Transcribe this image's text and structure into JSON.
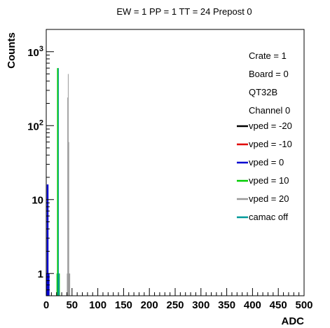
{
  "chart_data": {
    "type": "line",
    "title": "EW = 1 PP = 1 TT = 24 Prepost 0",
    "xlabel": "ADC",
    "ylabel": "Counts",
    "xlim": [
      0,
      500
    ],
    "ylim": [
      0.5,
      2000
    ],
    "yscale": "log",
    "x_ticks": [
      "0",
      "50",
      "100",
      "150",
      "200",
      "250",
      "300",
      "350",
      "400",
      "450",
      "500"
    ],
    "y_ticks": [
      {
        "value": 1,
        "base": "1",
        "exp": ""
      },
      {
        "value": 10,
        "base": "10",
        "exp": ""
      },
      {
        "value": 100,
        "base": "10",
        "exp": "2"
      },
      {
        "value": 1000,
        "base": "10",
        "exp": "3"
      }
    ],
    "info_lines": [
      "Crate = 1",
      "Board = 0",
      "QT32B",
      "Channel 0"
    ],
    "legend_position": "right",
    "series": [
      {
        "name": "vped = -20",
        "color": "#000000",
        "points": []
      },
      {
        "name": "vped = -10",
        "color": "#e00000",
        "points": []
      },
      {
        "name": "vped = 0",
        "color": "#0000d0",
        "points": [
          [
            0,
            1
          ],
          [
            1,
            16
          ],
          [
            2,
            16
          ],
          [
            3,
            16
          ],
          [
            4,
            1
          ],
          [
            5,
            1
          ]
        ]
      },
      {
        "name": "vped = 10",
        "color": "#00cc00",
        "points": [
          [
            20,
            1
          ],
          [
            21,
            600
          ],
          [
            22,
            600
          ],
          [
            23,
            1
          ],
          [
            24,
            1
          ],
          [
            25,
            1
          ]
        ]
      },
      {
        "name": "vped = 20",
        "color": "#999999",
        "points": [
          [
            40,
            1
          ],
          [
            41,
            240
          ],
          [
            42,
            500
          ],
          [
            43,
            60
          ],
          [
            44,
            1
          ],
          [
            45,
            1
          ]
        ]
      },
      {
        "name": "camac off",
        "color": "#009999",
        "points": [
          [
            22,
            1
          ],
          [
            23,
            600
          ],
          [
            24,
            1
          ]
        ]
      }
    ]
  }
}
